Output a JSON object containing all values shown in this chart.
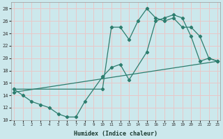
{
  "xlabel": "Humidex (Indice chaleur)",
  "bg_color": "#cce8ec",
  "grid_color": "#e8c8c8",
  "line_color": "#2d7d6e",
  "series": [
    {
      "x": [
        0,
        1,
        2,
        3,
        4,
        5,
        6,
        7,
        8,
        10,
        11,
        12,
        13,
        15,
        16,
        17,
        18,
        19,
        20,
        21,
        22,
        23
      ],
      "y": [
        15,
        14,
        13,
        12.5,
        12,
        11,
        10.5,
        10.5,
        13,
        17,
        18.5,
        19,
        16.5,
        21,
        26,
        26.5,
        27,
        26.5,
        23.5,
        19.5,
        20,
        19.5
      ]
    },
    {
      "x": [
        0,
        10,
        11,
        12,
        13,
        14,
        15,
        16,
        17,
        18,
        19,
        20,
        21,
        22,
        23
      ],
      "y": [
        15,
        15,
        25,
        25,
        23,
        26,
        28,
        26.5,
        26,
        26.5,
        25,
        25,
        23.5,
        20,
        19.5
      ]
    },
    {
      "x": [
        0,
        23
      ],
      "y": [
        14.5,
        19.5
      ]
    }
  ],
  "xlim": [
    0,
    23
  ],
  "ylim": [
    10,
    29
  ],
  "yticks": [
    10,
    12,
    14,
    16,
    18,
    20,
    22,
    24,
    26,
    28
  ],
  "xticks": [
    0,
    1,
    2,
    3,
    4,
    5,
    6,
    7,
    8,
    9,
    10,
    11,
    12,
    13,
    14,
    15,
    16,
    17,
    18,
    19,
    20,
    21,
    22,
    23
  ]
}
